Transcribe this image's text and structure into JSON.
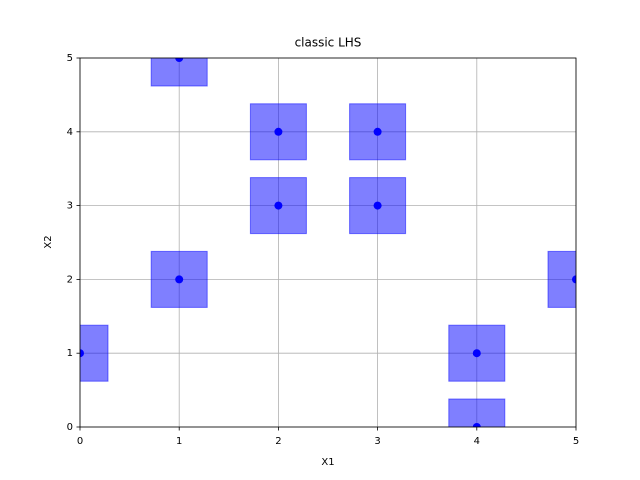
{
  "chart_data": {
    "type": "scatter",
    "title": "classic LHS",
    "x_label": "X1",
    "y_label": "X2",
    "series": [
      {
        "color": "#0000ff",
        "x": [
          0,
          1,
          1,
          2,
          2,
          3,
          3,
          4,
          4,
          5
        ],
        "values": [
          1,
          5,
          2,
          4,
          3,
          4,
          3,
          1,
          0,
          2
        ]
      }
    ],
    "xlim": [
      0,
      5
    ],
    "ylim": [
      0,
      5
    ],
    "xticks": [
      0,
      1,
      2,
      3,
      4,
      5
    ],
    "yticks": [
      0,
      1,
      2,
      3,
      4,
      5
    ],
    "grid": true
  }
}
